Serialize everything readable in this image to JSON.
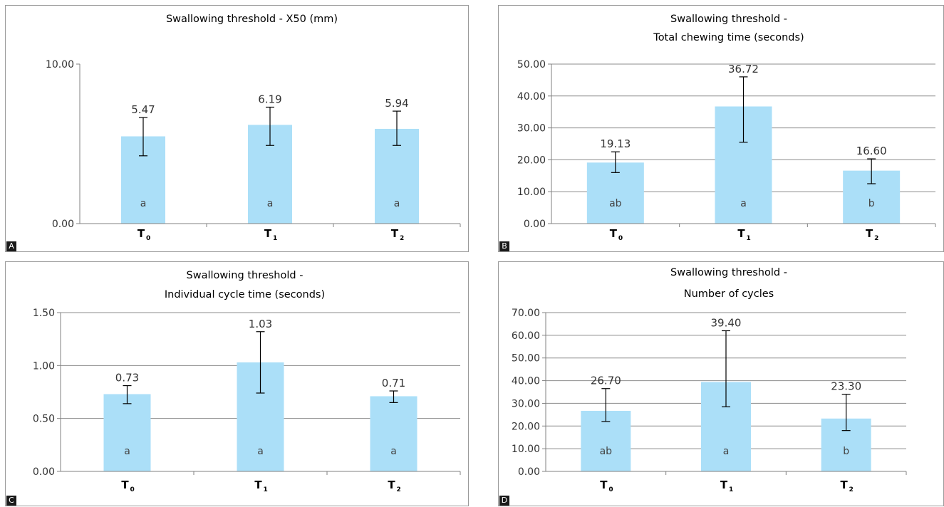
{
  "colors": {
    "bar": "#abdff8",
    "axis": "#808080",
    "grid": "#8c8c8c",
    "error": "#000000"
  },
  "chart_data": [
    {
      "type": "bar",
      "panel_label": "A",
      "title_lines": [
        "Swallowing threshold - X50 (mm)"
      ],
      "categories": [
        {
          "base": "T",
          "sub": "0"
        },
        {
          "base": "T",
          "sub": "1"
        },
        {
          "base": "T",
          "sub": "2"
        }
      ],
      "values": [
        5.47,
        6.19,
        5.94
      ],
      "value_labels": [
        "5.47",
        "6.19",
        "5.94"
      ],
      "error_low": [
        4.25,
        4.9,
        4.9
      ],
      "error_high": [
        6.65,
        7.3,
        7.05
      ],
      "groups": [
        "a",
        "a",
        "a"
      ],
      "ylim": [
        0,
        10
      ],
      "yticks": [
        "0.00",
        "10.00"
      ],
      "gridlines": false
    },
    {
      "type": "bar",
      "panel_label": "B",
      "title_lines": [
        "Swallowing threshold -",
        "Total chewing time (seconds)"
      ],
      "categories": [
        {
          "base": "T",
          "sub": "0"
        },
        {
          "base": "T",
          "sub": "1"
        },
        {
          "base": "T",
          "sub": "2"
        }
      ],
      "values": [
        19.13,
        36.72,
        16.6
      ],
      "value_labels": [
        "19.13",
        "36.72",
        "16.60"
      ],
      "error_low": [
        16.0,
        25.5,
        12.5
      ],
      "error_high": [
        22.5,
        46.0,
        20.3
      ],
      "groups": [
        "ab",
        "a",
        "b"
      ],
      "ylim": [
        0,
        50
      ],
      "yticks": [
        "0.00",
        "10.00",
        "20.00",
        "30.00",
        "40.00",
        "50.00"
      ],
      "gridlines": true
    },
    {
      "type": "bar",
      "panel_label": "C",
      "title_lines": [
        "Swallowing threshold -",
        "Individual cycle time (seconds)"
      ],
      "categories": [
        {
          "base": "T",
          "sub": "0"
        },
        {
          "base": "T",
          "sub": "1"
        },
        {
          "base": "T",
          "sub": "2"
        }
      ],
      "values": [
        0.73,
        1.03,
        0.71
      ],
      "value_labels": [
        "0.73",
        "1.03",
        "0.71"
      ],
      "error_low": [
        0.64,
        0.74,
        0.65
      ],
      "error_high": [
        0.81,
        1.32,
        0.76
      ],
      "groups": [
        "a",
        "a",
        "a"
      ],
      "ylim": [
        0,
        1.5
      ],
      "yticks": [
        "0.00",
        "0.50",
        "1.00",
        "1.50"
      ],
      "gridlines": true
    },
    {
      "type": "bar",
      "panel_label": "D",
      "title_lines": [
        "Swallowing threshold -",
        "Number of cycles"
      ],
      "categories": [
        {
          "base": "T",
          "sub": "0"
        },
        {
          "base": "T",
          "sub": "1"
        },
        {
          "base": "T",
          "sub": "2"
        }
      ],
      "values": [
        26.7,
        39.4,
        23.3
      ],
      "value_labels": [
        "26.70",
        "39.40",
        "23.30"
      ],
      "error_low": [
        22.0,
        28.5,
        18.0
      ],
      "error_high": [
        36.5,
        62.0,
        34.0
      ],
      "groups": [
        "ab",
        "a",
        "b"
      ],
      "ylim": [
        0,
        70
      ],
      "yticks": [
        "0.00",
        "10.00",
        "20.00",
        "30.00",
        "40.00",
        "50.00",
        "60.00",
        "70.00"
      ],
      "gridlines": true
    }
  ]
}
